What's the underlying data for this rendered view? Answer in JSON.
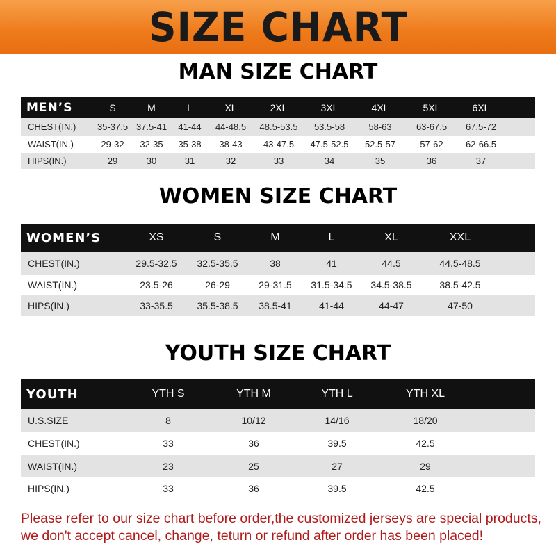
{
  "title": "SIZE CHART",
  "men": {
    "title": "MAN SIZE CHART",
    "header": "MEN’S",
    "sizes": [
      "S",
      "M",
      "L",
      "XL",
      "2XL",
      "3XL",
      "4XL",
      "5XL",
      "6XL"
    ],
    "rows": [
      {
        "label": "CHEST(IN.)",
        "values": [
          "35-37.5",
          "37.5-41",
          "41-44",
          "44-48.5",
          "48.5-53.5",
          "53.5-58",
          "58-63",
          "63-67.5",
          "67.5-72"
        ]
      },
      {
        "label": "WAIST(IN.)",
        "values": [
          "29-32",
          "32-35",
          "35-38",
          "38-43",
          "43-47.5",
          "47.5-52.5",
          "52.5-57",
          "57-62",
          "62-66.5"
        ]
      },
      {
        "label": "HIPS(IN.)",
        "values": [
          "29",
          "30",
          "31",
          "32",
          "33",
          "34",
          "35",
          "36",
          "37"
        ]
      }
    ]
  },
  "women": {
    "title": "WOMEN SIZE CHART",
    "header": "WOMEN’S",
    "sizes": [
      "XS",
      "S",
      "M",
      "L",
      "XL",
      "XXL"
    ],
    "rows": [
      {
        "label": "CHEST(IN.)",
        "values": [
          "29.5-32.5",
          "32.5-35.5",
          "38",
          "41",
          "44.5",
          "44.5-48.5"
        ]
      },
      {
        "label": "WAIST(IN.)",
        "values": [
          "23.5-26",
          "26-29",
          "29-31.5",
          "31.5-34.5",
          "34.5-38.5",
          "38.5-42.5"
        ]
      },
      {
        "label": "HIPS(IN.)",
        "values": [
          "33-35.5",
          "35.5-38.5",
          "38.5-41",
          "41-44",
          "44-47",
          "47-50"
        ]
      }
    ]
  },
  "youth": {
    "title": "YOUTH SIZE CHART",
    "header": "YOUTH",
    "sizes": [
      "YTH S",
      "YTH M",
      "YTH L",
      "YTH XL"
    ],
    "rows": [
      {
        "label": "U.S.SIZE",
        "values": [
          "8",
          "10/12",
          "14/16",
          "18/20"
        ]
      },
      {
        "label": "CHEST(IN.)",
        "values": [
          "33",
          "36",
          "39.5",
          "42.5"
        ]
      },
      {
        "label": "WAIST(IN.)",
        "values": [
          "23",
          "25",
          "27",
          "29"
        ]
      },
      {
        "label": "HIPS(IN.)",
        "values": [
          "33",
          "36",
          "39.5",
          "42.5"
        ]
      }
    ]
  },
  "note": "Please refer to our size chart before order,the customized jerseys are special products, we don't accept cancel, change, teturn or refund after order has been placed!",
  "colors": {
    "banner": "#ee7a1a",
    "header_row": "#111111",
    "stripe": "#e3e3e3",
    "note": "#b01a1a"
  }
}
